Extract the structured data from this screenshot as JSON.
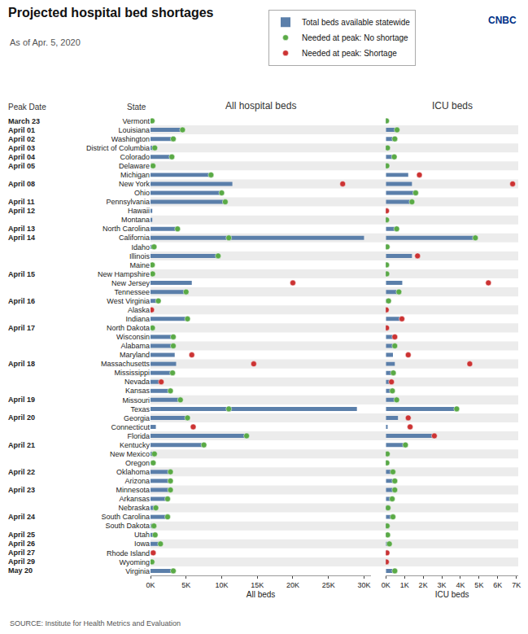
{
  "title": "Projected hospital bed shortages",
  "subtitle": "As of Apr. 5, 2020",
  "source": "SOURCE: Institute for Health Metrics and Evaluation",
  "logo": "CNBC",
  "column_headers": [
    "Peak Date",
    "State"
  ],
  "peak_dates": [
    "March 23",
    "April 01",
    "April 02",
    "April 03",
    "April 04",
    "April 05",
    null,
    "April 08",
    null,
    "April 11",
    "April 12",
    null,
    "April 13",
    "April 14",
    null,
    null,
    null,
    "April 15",
    null,
    null,
    "April 16",
    null,
    null,
    "April 17",
    null,
    null,
    null,
    "April 18",
    null,
    null,
    null,
    "April 19",
    null,
    "April 20",
    null,
    null,
    "April 21",
    null,
    null,
    "April 22",
    null,
    "April 23",
    null,
    null,
    "April 24",
    null,
    "April 25",
    "April 26",
    "April 27",
    "April 29",
    "May 20"
  ],
  "chart_data": [
    {
      "type": "bar",
      "orientation": "horizontal",
      "title": "All hospital beds",
      "xlabel": "All beds",
      "categories": [
        "Vermont",
        "Louisiana",
        "Washington",
        "District of Columbia",
        "Colorado",
        "Delaware",
        "Michigan",
        "New York",
        "Ohio",
        "Pennsylvania",
        "Hawaii",
        "Montana",
        "North Carolina",
        "California",
        "Idaho",
        "Illinois",
        "Maine",
        "New Hampshire",
        "New Jersey",
        "Tennessee",
        "West Virginia",
        "Alaska",
        "Indiana",
        "North Dakota",
        "Wisconsin",
        "Alabama",
        "Maryland",
        "Massachusetts",
        "Mississippi",
        "Nevada",
        "Kansas",
        "Missouri",
        "Texas",
        "Georgia",
        "Connecticut",
        "Florida",
        "Kentucky",
        "New Mexico",
        "Oregon",
        "Oklahoma",
        "Arizona",
        "Minnesota",
        "Arkansas",
        "Nebraska",
        "South Carolina",
        "South Dakota",
        "Utah",
        "Iowa",
        "Rhode Island",
        "Wyoming",
        "Virginia"
      ],
      "series": [
        {
          "name": "Total beds available statewide",
          "type": "bar",
          "color": "#5b7faa",
          "values": [
            220,
            4500,
            3200,
            600,
            3000,
            350,
            8500,
            11500,
            10000,
            10500,
            250,
            250,
            3800,
            30000,
            500,
            9500,
            250,
            300,
            5800,
            5000,
            1100,
            150,
            5200,
            280,
            3200,
            3200,
            3400,
            3600,
            3100,
            1200,
            2800,
            4200,
            29000,
            5200,
            750,
            13500,
            7500,
            550,
            380,
            2800,
            2800,
            2800,
            2400,
            750,
            2400,
            480,
            650,
            1400,
            380,
            200,
            3200
          ]
        },
        {
          "name": "Needed at peak: No shortage",
          "type": "scatter",
          "marker": "circle",
          "color": "#5aaa46",
          "values": [
            220,
            4500,
            3200,
            600,
            3000,
            350,
            8500,
            null,
            10000,
            10500,
            null,
            null,
            3800,
            11000,
            500,
            9500,
            250,
            300,
            null,
            5000,
            1100,
            null,
            5200,
            280,
            3200,
            3200,
            null,
            null,
            3100,
            null,
            2800,
            4200,
            11000,
            5200,
            null,
            13500,
            7500,
            550,
            380,
            2800,
            2800,
            2800,
            2400,
            750,
            2400,
            480,
            650,
            1400,
            null,
            200,
            3200
          ]
        },
        {
          "name": "Needed at peak: Shortage",
          "type": "scatter",
          "marker": "circle",
          "color": "#cc3333",
          "values": [
            null,
            null,
            null,
            null,
            null,
            null,
            null,
            27000,
            null,
            null,
            null,
            null,
            null,
            null,
            null,
            null,
            null,
            null,
            20000,
            null,
            null,
            150,
            null,
            null,
            null,
            null,
            5800,
            14500,
            null,
            1500,
            null,
            null,
            null,
            null,
            6000,
            null,
            null,
            null,
            null,
            null,
            null,
            null,
            null,
            null,
            null,
            null,
            null,
            null,
            380,
            null,
            null
          ]
        }
      ],
      "xlim": [
        0,
        31000
      ],
      "xticks": [
        {
          "value": 0,
          "label": "0K"
        },
        {
          "value": 5000,
          "label": "5K"
        },
        {
          "value": 10000,
          "label": "10K"
        },
        {
          "value": 15000,
          "label": "15K"
        },
        {
          "value": 20000,
          "label": "20K"
        },
        {
          "value": 25000,
          "label": "25K"
        },
        {
          "value": 30000,
          "label": "30K"
        }
      ],
      "grid": false,
      "legend": "top"
    },
    {
      "type": "bar",
      "orientation": "horizontal",
      "title": "ICU beds",
      "xlabel": "ICU beds",
      "categories": [
        "Vermont",
        "Louisiana",
        "Washington",
        "District of Columbia",
        "Colorado",
        "Delaware",
        "Michigan",
        "New York",
        "Ohio",
        "Pennsylvania",
        "Hawaii",
        "Montana",
        "North Carolina",
        "California",
        "Idaho",
        "Illinois",
        "Maine",
        "New Hampshire",
        "New Jersey",
        "Tennessee",
        "West Virginia",
        "Alaska",
        "Indiana",
        "North Dakota",
        "Wisconsin",
        "Alabama",
        "Maryland",
        "Massachusetts",
        "Mississippi",
        "Nevada",
        "Kansas",
        "Missouri",
        "Texas",
        "Georgia",
        "Connecticut",
        "Florida",
        "Kentucky",
        "New Mexico",
        "Oregon",
        "Oklahoma",
        "Arizona",
        "Minnesota",
        "Arkansas",
        "Nebraska",
        "South Carolina",
        "South Dakota",
        "Utah",
        "Iowa",
        "Rhode Island",
        "Wyoming",
        "Virginia"
      ],
      "series": [
        {
          "name": "Total beds available statewide",
          "type": "bar",
          "color": "#5b7faa",
          "values": [
            35,
            600,
            480,
            90,
            450,
            55,
            1200,
            1400,
            1600,
            1400,
            35,
            40,
            580,
            4800,
            65,
            1400,
            40,
            50,
            880,
            700,
            145,
            22,
            860,
            42,
            480,
            480,
            380,
            480,
            400,
            180,
            350,
            580,
            3800,
            650,
            95,
            2600,
            1050,
            75,
            55,
            380,
            480,
            480,
            340,
            115,
            380,
            68,
            95,
            190,
            58,
            28,
            480
          ]
        },
        {
          "name": "Needed at peak: No shortage",
          "type": "scatter",
          "marker": "circle",
          "color": "#5aaa46",
          "values": [
            35,
            600,
            480,
            90,
            450,
            55,
            null,
            null,
            1600,
            1400,
            null,
            40,
            580,
            4800,
            65,
            null,
            40,
            50,
            null,
            700,
            145,
            null,
            null,
            null,
            null,
            480,
            null,
            null,
            400,
            null,
            350,
            580,
            3800,
            null,
            null,
            null,
            1050,
            75,
            55,
            380,
            480,
            480,
            340,
            115,
            380,
            68,
            95,
            190,
            null,
            null,
            480
          ]
        },
        {
          "name": "Needed at peak: Shortage",
          "type": "scatter",
          "marker": "circle",
          "color": "#cc3333",
          "values": [
            null,
            null,
            null,
            null,
            null,
            null,
            1800,
            6800,
            null,
            null,
            35,
            null,
            null,
            null,
            null,
            1700,
            null,
            null,
            5500,
            null,
            null,
            22,
            860,
            42,
            480,
            null,
            1200,
            4500,
            null,
            300,
            null,
            null,
            null,
            1200,
            1300,
            2600,
            null,
            null,
            null,
            null,
            null,
            null,
            null,
            null,
            null,
            null,
            null,
            null,
            58,
            28,
            null
          ]
        }
      ],
      "xlim": [
        0,
        7100
      ],
      "xticks": [
        {
          "value": 0,
          "label": "0K"
        },
        {
          "value": 1000,
          "label": "1K"
        },
        {
          "value": 2000,
          "label": "2K"
        },
        {
          "value": 3000,
          "label": "3K"
        },
        {
          "value": 4000,
          "label": "4K"
        },
        {
          "value": 5000,
          "label": "5K"
        },
        {
          "value": 6000,
          "label": "6K"
        },
        {
          "value": 7000,
          "label": "7K"
        }
      ],
      "grid": false,
      "tick_labels": "x"
    }
  ]
}
